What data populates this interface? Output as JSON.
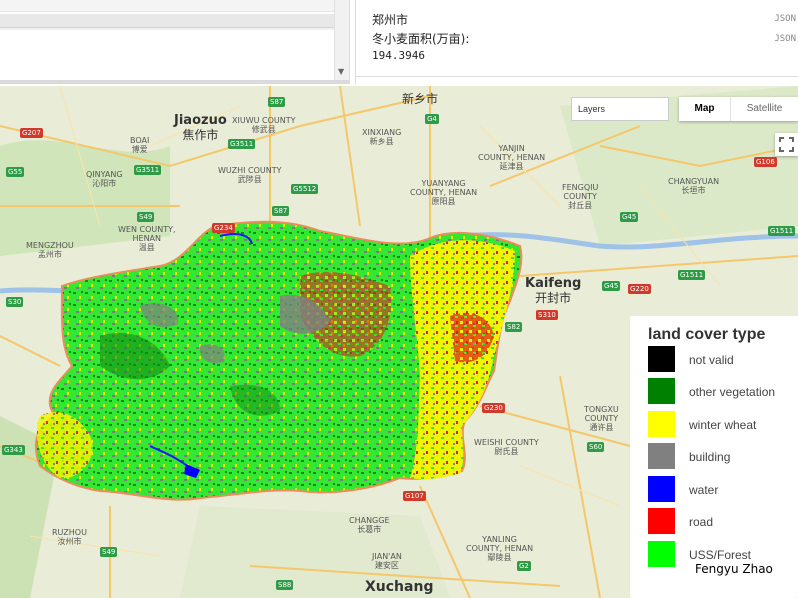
{
  "console": {
    "line1": "郑州市",
    "line2": "冬小麦面积(万亩):",
    "value": "194.3946",
    "json_label": "JSON"
  },
  "map_controls": {
    "layers_label": "Layers",
    "map_label": "Map",
    "satellite_label": "Satellite"
  },
  "legend": {
    "title": "land cover type",
    "items": [
      {
        "label": "not valid",
        "color": "#000000"
      },
      {
        "label": "other vegetation",
        "color": "#008000"
      },
      {
        "label": "winter wheat",
        "color": "#ffff00"
      },
      {
        "label": "building",
        "color": "#808080"
      },
      {
        "label": "water",
        "color": "#0000ff"
      },
      {
        "label": "road",
        "color": "#ff0000"
      },
      {
        "label": "USS/Forest",
        "color": "#00ff00"
      }
    ]
  },
  "credit": "Fengyu Zhao",
  "cities": {
    "jiaozuo": "Jiaozuo",
    "jiaozuo_zh": "焦作市",
    "xinxiang_zh": "新乡市",
    "kaifeng": "Kaifeng",
    "kaifeng_zh": "开封市",
    "xuchang": "Xuchang"
  },
  "places": {
    "xiuwu": "XIUWU COUNTY",
    "xiuwu_zh": "修武县",
    "boai": "BOAI",
    "boai_zh": "博爱",
    "qinyang": "QINYANG",
    "qinyang_zh": "沁阳市",
    "wuzhi": "WUZHI COUNTY",
    "wuzhi_zh": "武陟县",
    "xinxiang": "XINXIANG",
    "xinxiang_county_zh": "新乡县",
    "yanjin": "YANJIN",
    "yanjin2": "COUNTY, HENAN",
    "yanjin_zh": "延津县",
    "yuanyang": "YUANYANG",
    "yuanyang2": "COUNTY, HENAN",
    "yuanyang_zh": "原阳县",
    "fengqiu": "FENGQIU",
    "fengqiu2": "COUNTY",
    "fengqiu_zh": "封丘县",
    "changyuan": "CHANGYUAN",
    "changyuan_zh": "长垣市",
    "wen": "WEN COUNTY,",
    "wen2": "HENAN",
    "wen_zh": "温县",
    "mengzhou": "MENGZHOU",
    "mengzhou_zh": "孟州市",
    "tongxu": "TONGXU",
    "tongxu2": "COUNTY",
    "tongxu_zh": "通许县",
    "weishi": "WEISHI COUNTY",
    "weishi_zh": "尉氏县",
    "changge": "CHANGGE",
    "changge_zh": "长葛市",
    "yanling": "YANLING",
    "yanling2": "COUNTY, HENAN",
    "yanling_zh": "鄢陵县",
    "jian_an": "JIAN'AN",
    "jian_an_zh": "建安区",
    "ruzhou": "RUZHOU",
    "ruzhou_zh": "汝州市"
  },
  "shields": {
    "s87a": "S87",
    "g207": "G207",
    "g3511a": "G3511",
    "s49a": "S49",
    "g55": "G55",
    "g3511b": "G3511",
    "g5512": "G5512",
    "s87b": "S87",
    "g234": "G234",
    "g4": "G4",
    "g106": "G106",
    "g1511": "G1511",
    "g1511b": "G1511",
    "g45a": "G45",
    "g45b": "G45",
    "g220": "G220",
    "s30": "S30",
    "s310": "S310",
    "s82": "S82",
    "g230": "G230",
    "s60": "S60",
    "g343": "G343",
    "g107": "G107",
    "s49b": "S49",
    "s88": "S88",
    "g2": "G2"
  }
}
